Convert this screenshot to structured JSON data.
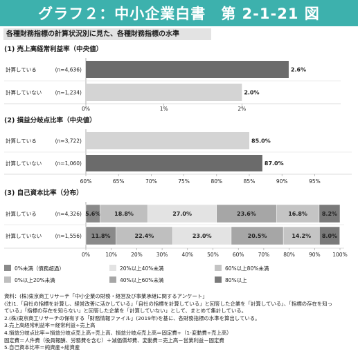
{
  "header": {
    "title": "グラフ２：中小企業白書　第 2-1-21 図",
    "subtitle": "各種財務指標の計算状況別に見た、各種財務指標の水準"
  },
  "chart_data": [
    {
      "type": "bar",
      "orientation": "horizontal",
      "title": "(1) 売上高経常利益率（中央値）",
      "categories": [
        "計算している",
        "計算していない"
      ],
      "counts": [
        "(n=4,636)",
        "(n=1,234)"
      ],
      "values": [
        2.6,
        2.0
      ],
      "value_labels": [
        "2.6%",
        "2.0%"
      ],
      "xlim": [
        0,
        3
      ],
      "xticks": [
        0,
        1,
        2
      ],
      "xtick_labels": [
        "0%",
        "1%",
        "2%"
      ],
      "colors": [
        "#6b6b6b",
        "#d4d4d4"
      ]
    },
    {
      "type": "bar",
      "orientation": "horizontal",
      "title": "(2) 損益分岐点比率（中央値）",
      "categories": [
        "計算している",
        "計算していない"
      ],
      "counts": [
        "(n=3,722)",
        "(n=1,060)"
      ],
      "values": [
        85.0,
        87.0
      ],
      "value_labels": [
        "85.0%",
        "87.0%"
      ],
      "xlim": [
        60,
        97.5
      ],
      "xticks": [
        60,
        65,
        70,
        75,
        80,
        85,
        90,
        95
      ],
      "xtick_labels": [
        "60%",
        "65%",
        "70%",
        "75%",
        "80%",
        "85%",
        "90%",
        "95%"
      ],
      "colors": [
        "#d4d4d4",
        "#6b6b6b"
      ]
    },
    {
      "type": "bar",
      "stacked": true,
      "orientation": "horizontal",
      "title": "(3) 自己資本比率（分布）",
      "categories": [
        "計算している",
        "計算していない"
      ],
      "counts": [
        "(n=4,326)",
        "(n=1,556)"
      ],
      "series": [
        {
          "name": "0%未満（債務超過）",
          "color": "#8a8a8a",
          "values": [
            5.6,
            11.8
          ],
          "labels": [
            "5.6%",
            "11.8%"
          ]
        },
        {
          "name": "0%以上20%未満",
          "color": "#bfbfbf",
          "values": [
            18.8,
            22.4
          ],
          "labels": [
            "18.8%",
            "22.4%"
          ]
        },
        {
          "name": "20%以上40%未満",
          "color": "#e3e3e3",
          "values": [
            27.0,
            23.0
          ],
          "labels": [
            "27.0%",
            "23.0%"
          ]
        },
        {
          "name": "40%以上60%未満",
          "color": "#a6a6a6",
          "values": [
            23.6,
            20.5
          ],
          "labels": [
            "23.6%",
            "20.5%"
          ]
        },
        {
          "name": "60%以上80%未満",
          "color": "#c4c4c4",
          "values": [
            16.8,
            14.2
          ],
          "labels": [
            "16.8%",
            "14.2%"
          ]
        },
        {
          "name": "80%以上",
          "color": "#7a7a7a",
          "values": [
            8.2,
            8.0
          ],
          "labels": [
            "8.2%",
            "8.0%"
          ]
        }
      ],
      "xlim": [
        0,
        100
      ],
      "xticks": [
        0,
        10,
        20,
        30,
        40,
        50,
        60,
        70,
        80,
        90,
        100
      ],
      "xtick_labels": [
        "0%",
        "10%",
        "20%",
        "30%",
        "40%",
        "50%",
        "60%",
        "70%",
        "80%",
        "90%",
        "100%"
      ]
    }
  ],
  "notes": [
    "資料：(株)東京商工リサーチ「中小企業の財務・経営及び事業承継に関するアンケート」",
    "(注)1.「自社の指標を計算し、経営改善に活かしている」「自社の指標を計算している」と回答した企業を「計算している」、「指標の存在を知っ",
    "ている」「指標の存在を知らない」と回答した企業を「計算していない」として、まとめて集計している。",
    "2.(株)東京商工リサーチの保有する「財務情報ファイル」(2019年)を基に、各財務指標の水準を算出している。",
    "3.売上高経常利益率＝経常利益÷売上高",
    "4.損益分岐点比率＝損益分岐点売上高÷売上高、損益分岐点売上高＝固定費÷（1-変動費÷売上高）",
    "固定費＝人件費（役員報酬、労務費を含む）＋減価償却費、変動費＝売上高－営業利益－固定費",
    "5.自己資本比率＝純資産÷総資産"
  ]
}
